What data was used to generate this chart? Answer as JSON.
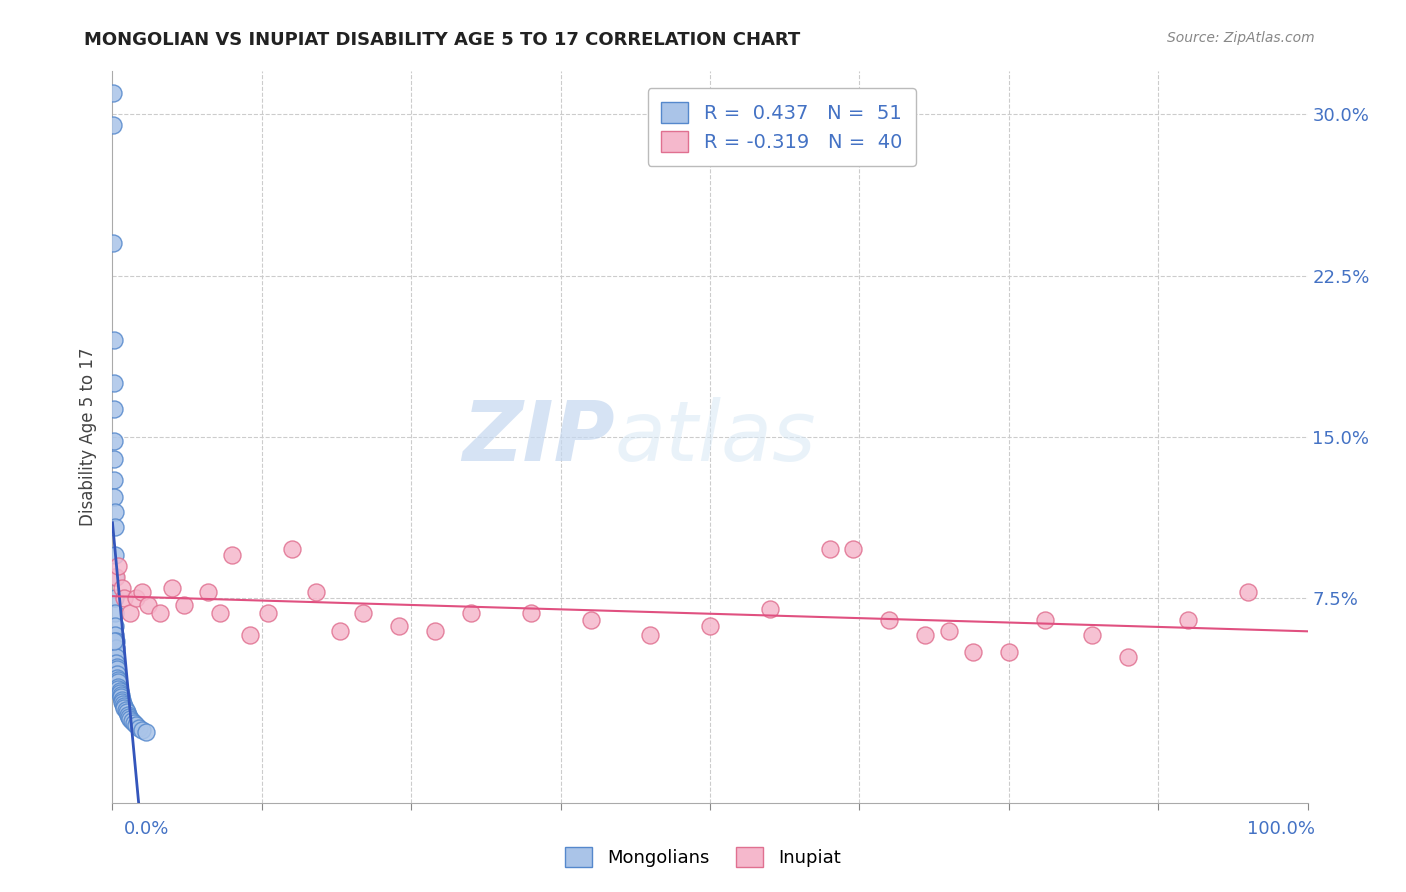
{
  "title": "MONGOLIAN VS INUPIAT DISABILITY AGE 5 TO 17 CORRELATION CHART",
  "source": "Source: ZipAtlas.com",
  "ylabel": "Disability Age 5 to 17",
  "ytick_values": [
    0.0,
    0.075,
    0.15,
    0.225,
    0.3
  ],
  "ytick_labels": [
    "",
    "7.5%",
    "15.0%",
    "22.5%",
    "30.0%"
  ],
  "xlim": [
    0.0,
    1.0
  ],
  "ylim": [
    -0.02,
    0.32
  ],
  "mongolian_R": 0.437,
  "mongolian_N": 51,
  "inupiat_R": -0.319,
  "inupiat_N": 40,
  "mongolian_color": "#aac4e8",
  "mongolian_edge": "#5588cc",
  "inupiat_color": "#f5b8cc",
  "inupiat_edge": "#e07090",
  "trend_mongolian_color": "#3355bb",
  "trend_inupiat_color": "#e05080",
  "watermark_zip": "ZIP",
  "watermark_atlas": "atlas",
  "background_color": "#ffffff",
  "grid_color": "#cccccc",
  "mongolian_x": [
    0.0005,
    0.0007,
    0.001,
    0.001,
    0.0012,
    0.0013,
    0.0014,
    0.0015,
    0.0016,
    0.0017,
    0.0018,
    0.002,
    0.002,
    0.0022,
    0.0023,
    0.0024,
    0.0025,
    0.003,
    0.003,
    0.003,
    0.003,
    0.0035,
    0.004,
    0.004,
    0.004,
    0.0045,
    0.005,
    0.005,
    0.005,
    0.006,
    0.006,
    0.007,
    0.007,
    0.008,
    0.008,
    0.009,
    0.01,
    0.01,
    0.011,
    0.012,
    0.013,
    0.014,
    0.015,
    0.016,
    0.018,
    0.02,
    0.022,
    0.025,
    0.028,
    0.001,
    0.0008
  ],
  "mongolian_y": [
    0.295,
    0.24,
    0.195,
    0.175,
    0.163,
    0.148,
    0.14,
    0.13,
    0.122,
    0.115,
    0.108,
    0.095,
    0.085,
    0.075,
    0.068,
    0.062,
    0.058,
    0.055,
    0.052,
    0.048,
    0.045,
    0.043,
    0.042,
    0.04,
    0.038,
    0.037,
    0.036,
    0.034,
    0.033,
    0.032,
    0.031,
    0.03,
    0.029,
    0.028,
    0.027,
    0.026,
    0.025,
    0.024,
    0.023,
    0.022,
    0.021,
    0.02,
    0.019,
    0.018,
    0.017,
    0.016,
    0.015,
    0.014,
    0.013,
    0.055,
    0.31
  ],
  "inupiat_x": [
    0.003,
    0.005,
    0.008,
    0.01,
    0.015,
    0.02,
    0.025,
    0.03,
    0.04,
    0.05,
    0.06,
    0.08,
    0.09,
    0.1,
    0.115,
    0.13,
    0.15,
    0.17,
    0.19,
    0.21,
    0.24,
    0.27,
    0.3,
    0.35,
    0.4,
    0.45,
    0.5,
    0.55,
    0.6,
    0.62,
    0.65,
    0.68,
    0.7,
    0.72,
    0.75,
    0.78,
    0.82,
    0.85,
    0.9,
    0.95
  ],
  "inupiat_y": [
    0.085,
    0.09,
    0.08,
    0.075,
    0.068,
    0.075,
    0.078,
    0.072,
    0.068,
    0.08,
    0.072,
    0.078,
    0.068,
    0.095,
    0.058,
    0.068,
    0.098,
    0.078,
    0.06,
    0.068,
    0.062,
    0.06,
    0.068,
    0.068,
    0.065,
    0.058,
    0.062,
    0.07,
    0.098,
    0.098,
    0.065,
    0.058,
    0.06,
    0.05,
    0.05,
    0.065,
    0.058,
    0.048,
    0.065,
    0.078
  ],
  "mon_trend_x": [
    0.0,
    0.07
  ],
  "inp_trend_x": [
    0.0,
    1.0
  ],
  "xtick_positions": [
    0.0,
    0.125,
    0.25,
    0.375,
    0.5,
    0.625,
    0.75,
    0.875,
    1.0
  ]
}
